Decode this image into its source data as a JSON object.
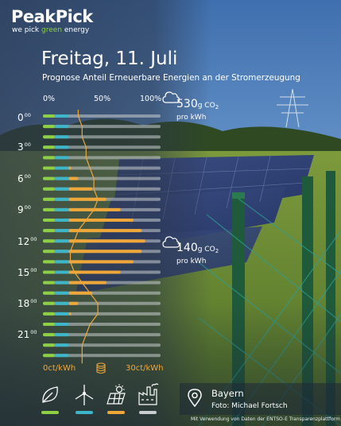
{
  "brand": {
    "name": "PeakPick",
    "tagline_prefix": "we pick ",
    "tagline_green": "green",
    "tagline_suffix": " energy"
  },
  "title": "Freitag, 11. Juli",
  "subtitle": "Prognose Anteil Erneuerbare Energien an der Stromerzeugung",
  "axis": {
    "x0": "0%",
    "x50": "50%",
    "x100": "100%"
  },
  "hours": [
    {
      "h": "0",
      "m": "00"
    },
    {
      "h": "3",
      "m": "00"
    },
    {
      "h": "6",
      "m": "00"
    },
    {
      "h": "9",
      "m": "00"
    },
    {
      "h": "12",
      "m": "00"
    },
    {
      "h": "15",
      "m": "00"
    },
    {
      "h": "18",
      "m": "00"
    },
    {
      "h": "21",
      "m": "00"
    }
  ],
  "co2_high": {
    "value": "530",
    "unit": "g CO",
    "sub": "2",
    "per": "pro kWh"
  },
  "co2_low": {
    "value": "140",
    "unit": "g CO",
    "sub": "2",
    "per": "pro kWh"
  },
  "price": {
    "min": "0ct/kWh",
    "max": "30ct/kWh"
  },
  "location": {
    "region": "Bayern",
    "photo": "Foto: Michael Fortsch"
  },
  "credit": "Mit Verwendung von Daten der ENTSO-E Transparenzplattform",
  "icons": [
    "leaf-icon",
    "wind-turbine-icon",
    "solar-panel-icon",
    "factory-icon",
    "coin-stack-icon",
    "location-pin-icon",
    "cloud-icon"
  ],
  "colors": {
    "green": "#8dd043",
    "teal": "#3cb6c8",
    "orange": "#f0a73a",
    "rest": "#c9cdd0"
  },
  "chart_data": {
    "type": "bar",
    "orientation": "horizontal-stacked",
    "hour_slots": 24,
    "series": [
      {
        "values": [
          10,
          10,
          10,
          10,
          10,
          10,
          10,
          10,
          10,
          10,
          10,
          10,
          10,
          10,
          10,
          10,
          10,
          10,
          10,
          10,
          10,
          10,
          10,
          10
        ]
      },
      {
        "values": [
          12,
          12,
          12,
          12,
          12,
          12,
          12,
          12,
          12,
          12,
          12,
          12,
          12,
          12,
          12,
          12,
          12,
          12,
          12,
          12,
          12,
          12,
          12,
          12
        ]
      },
      {
        "values": [
          0,
          0,
          0,
          0,
          0,
          2,
          8,
          20,
          32,
          44,
          55,
          62,
          65,
          62,
          55,
          44,
          32,
          20,
          8,
          2,
          0,
          0,
          0,
          0
        ]
      }
    ],
    "price_line_ct_per_kwh": [
      9,
      10,
      10,
      11,
      11,
      12,
      13,
      13,
      14,
      13,
      11,
      9,
      8,
      7,
      7,
      8,
      10,
      12,
      14,
      14,
      12,
      11,
      10,
      10
    ],
    "price_range": [
      0,
      30
    ]
  }
}
